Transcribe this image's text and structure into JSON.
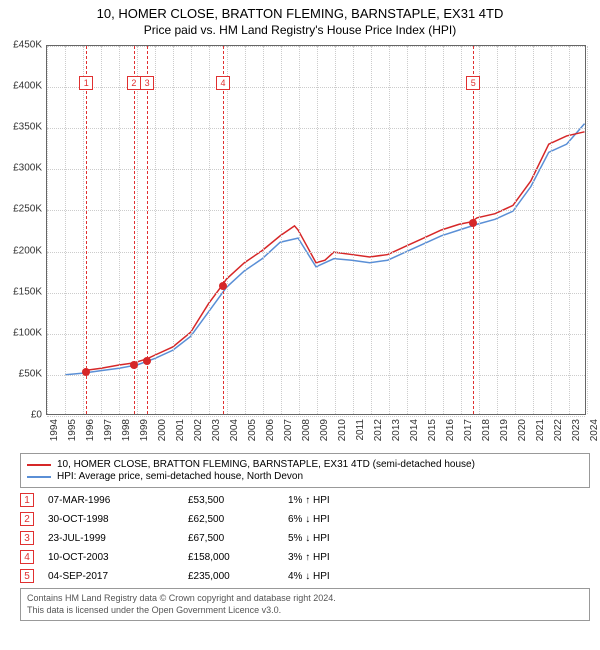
{
  "title": "10, HOMER CLOSE, BRATTON FLEMING, BARNSTAPLE, EX31 4TD",
  "subtitle": "Price paid vs. HM Land Registry's House Price Index (HPI)",
  "chart": {
    "type": "line",
    "background_color": "#ffffff",
    "grid_color": "#cccccc",
    "border_color": "#666666",
    "x_axis": {
      "min": 1994,
      "max": 2024,
      "step": 1,
      "labels": [
        "1994",
        "1995",
        "1996",
        "1997",
        "1998",
        "1999",
        "2000",
        "2001",
        "2002",
        "2003",
        "2004",
        "2005",
        "2006",
        "2007",
        "2008",
        "2009",
        "2010",
        "2011",
        "2012",
        "2013",
        "2014",
        "2015",
        "2016",
        "2017",
        "2018",
        "2019",
        "2020",
        "2021",
        "2022",
        "2023",
        "2024"
      ]
    },
    "y_axis": {
      "min": 0,
      "max": 450000,
      "step": 50000,
      "prefix": "£",
      "suffix": "K",
      "labels": [
        "£0",
        "£50K",
        "£100K",
        "£150K",
        "£200K",
        "£250K",
        "£300K",
        "£350K",
        "£400K",
        "£450K"
      ]
    },
    "series": [
      {
        "name": "10, HOMER CLOSE, BRATTON FLEMING, BARNSTAPLE, EX31 4TD (semi-detached house)",
        "color": "#d62728",
        "width": 1.5,
        "data": [
          [
            1996.18,
            53500
          ],
          [
            1997,
            56000
          ],
          [
            1998,
            60000
          ],
          [
            1998.83,
            62500
          ],
          [
            1999.56,
            67500
          ],
          [
            2000,
            72000
          ],
          [
            2001,
            82000
          ],
          [
            2002,
            100000
          ],
          [
            2003,
            135000
          ],
          [
            2003.78,
            158000
          ],
          [
            2004,
            165000
          ],
          [
            2005,
            185000
          ],
          [
            2006,
            200000
          ],
          [
            2007,
            218000
          ],
          [
            2007.8,
            230000
          ],
          [
            2008,
            225000
          ],
          [
            2008.5,
            205000
          ],
          [
            2009,
            185000
          ],
          [
            2009.5,
            188000
          ],
          [
            2010,
            198000
          ],
          [
            2011,
            195000
          ],
          [
            2012,
            192000
          ],
          [
            2013,
            195000
          ],
          [
            2014,
            205000
          ],
          [
            2015,
            215000
          ],
          [
            2016,
            225000
          ],
          [
            2017,
            232000
          ],
          [
            2017.68,
            235000
          ],
          [
            2018,
            240000
          ],
          [
            2019,
            245000
          ],
          [
            2020,
            255000
          ],
          [
            2021,
            285000
          ],
          [
            2022,
            330000
          ],
          [
            2023,
            340000
          ],
          [
            2024,
            345000
          ]
        ]
      },
      {
        "name": "HPI: Average price, semi-detached house, North Devon",
        "color": "#5a8fd6",
        "width": 1.5,
        "data": [
          [
            1995,
            48000
          ],
          [
            1996,
            50000
          ],
          [
            1997,
            53000
          ],
          [
            1998,
            56000
          ],
          [
            1999,
            60000
          ],
          [
            2000,
            68000
          ],
          [
            2001,
            78000
          ],
          [
            2002,
            95000
          ],
          [
            2003,
            125000
          ],
          [
            2004,
            155000
          ],
          [
            2005,
            175000
          ],
          [
            2006,
            190000
          ],
          [
            2007,
            210000
          ],
          [
            2008,
            215000
          ],
          [
            2009,
            180000
          ],
          [
            2010,
            190000
          ],
          [
            2011,
            188000
          ],
          [
            2012,
            185000
          ],
          [
            2013,
            188000
          ],
          [
            2014,
            198000
          ],
          [
            2015,
            208000
          ],
          [
            2016,
            218000
          ],
          [
            2017,
            225000
          ],
          [
            2018,
            232000
          ],
          [
            2019,
            238000
          ],
          [
            2020,
            248000
          ],
          [
            2021,
            278000
          ],
          [
            2022,
            320000
          ],
          [
            2023,
            330000
          ],
          [
            2024,
            355000
          ]
        ]
      }
    ],
    "event_lines": {
      "color": "#e03030",
      "box_border": "#e03030",
      "items": [
        {
          "n": "1",
          "x": 1996.18
        },
        {
          "n": "2",
          "x": 1998.83
        },
        {
          "n": "3",
          "x": 1999.56
        },
        {
          "n": "4",
          "x": 2003.78
        },
        {
          "n": "5",
          "x": 2017.68
        }
      ]
    },
    "markers": [
      {
        "x": 1996.18,
        "y": 53500
      },
      {
        "x": 1998.83,
        "y": 62500
      },
      {
        "x": 1999.56,
        "y": 67500
      },
      {
        "x": 2003.78,
        "y": 158000
      },
      {
        "x": 2017.68,
        "y": 235000
      }
    ]
  },
  "legend": [
    {
      "color": "#d62728",
      "label": "10, HOMER CLOSE, BRATTON FLEMING, BARNSTAPLE, EX31 4TD (semi-detached house)"
    },
    {
      "color": "#5a8fd6",
      "label": "HPI: Average price, semi-detached house, North Devon"
    }
  ],
  "events_table": [
    {
      "n": "1",
      "date": "07-MAR-1996",
      "price": "£53,500",
      "delta": "1% ↑ HPI"
    },
    {
      "n": "2",
      "date": "30-OCT-1998",
      "price": "£62,500",
      "delta": "6% ↓ HPI"
    },
    {
      "n": "3",
      "date": "23-JUL-1999",
      "price": "£67,500",
      "delta": "5% ↓ HPI"
    },
    {
      "n": "4",
      "date": "10-OCT-2003",
      "price": "£158,000",
      "delta": "3% ↑ HPI"
    },
    {
      "n": "5",
      "date": "04-SEP-2017",
      "price": "£235,000",
      "delta": "4% ↓ HPI"
    }
  ],
  "footer": {
    "line1": "Contains HM Land Registry data © Crown copyright and database right 2024.",
    "line2": "This data is licensed under the Open Government Licence v3.0."
  }
}
